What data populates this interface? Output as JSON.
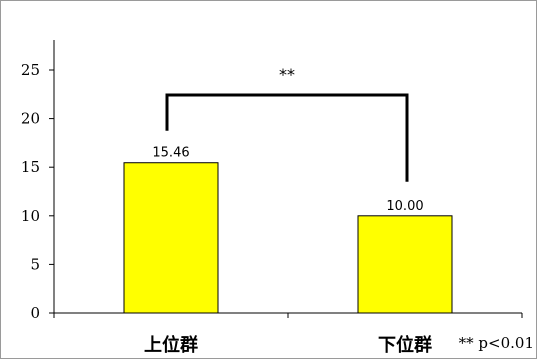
{
  "chart_data": {
    "type": "bar",
    "categories": [
      "上位群",
      "下位群"
    ],
    "values": [
      15.46,
      10.0
    ],
    "data_labels": [
      "15.46",
      "10.00"
    ],
    "title": "",
    "xlabel": "",
    "ylabel": "",
    "ylim": [
      0,
      25
    ],
    "yticks": [
      0,
      5,
      10,
      15,
      20,
      25
    ],
    "grid": false,
    "legend": "none",
    "bar_color": "#FFFF00",
    "bar_edge_color": "#000000",
    "significance": {
      "label": "**",
      "between": [
        0,
        1
      ],
      "note": "** p<0.01"
    }
  }
}
